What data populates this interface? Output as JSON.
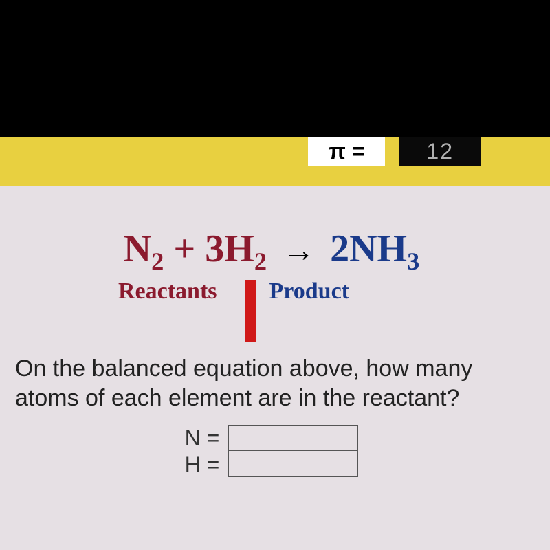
{
  "topFragments": {
    "whiteBox": "π =",
    "darkBox": "12"
  },
  "equation": {
    "left_n": "N",
    "left_n_sub": "2",
    "plus": " + ",
    "left_h_coef": "3",
    "left_h": "H",
    "left_h_sub": "2",
    "right_coef": "2",
    "right_nh": "NH",
    "right_sub": "3"
  },
  "labels": {
    "reactants": "Reactants",
    "product": "Product"
  },
  "question": {
    "line1": "On the balanced equation above, how many",
    "line2": "atoms of each element are in the reactant?"
  },
  "answers": {
    "n_label": "N =",
    "h_label": "H ="
  },
  "colors": {
    "reactant_color": "#8b1a2e",
    "product_color": "#1a3a8a",
    "redbar": "#d01818",
    "yellow": "#e8d040",
    "card_bg": "#e6e0e4"
  }
}
